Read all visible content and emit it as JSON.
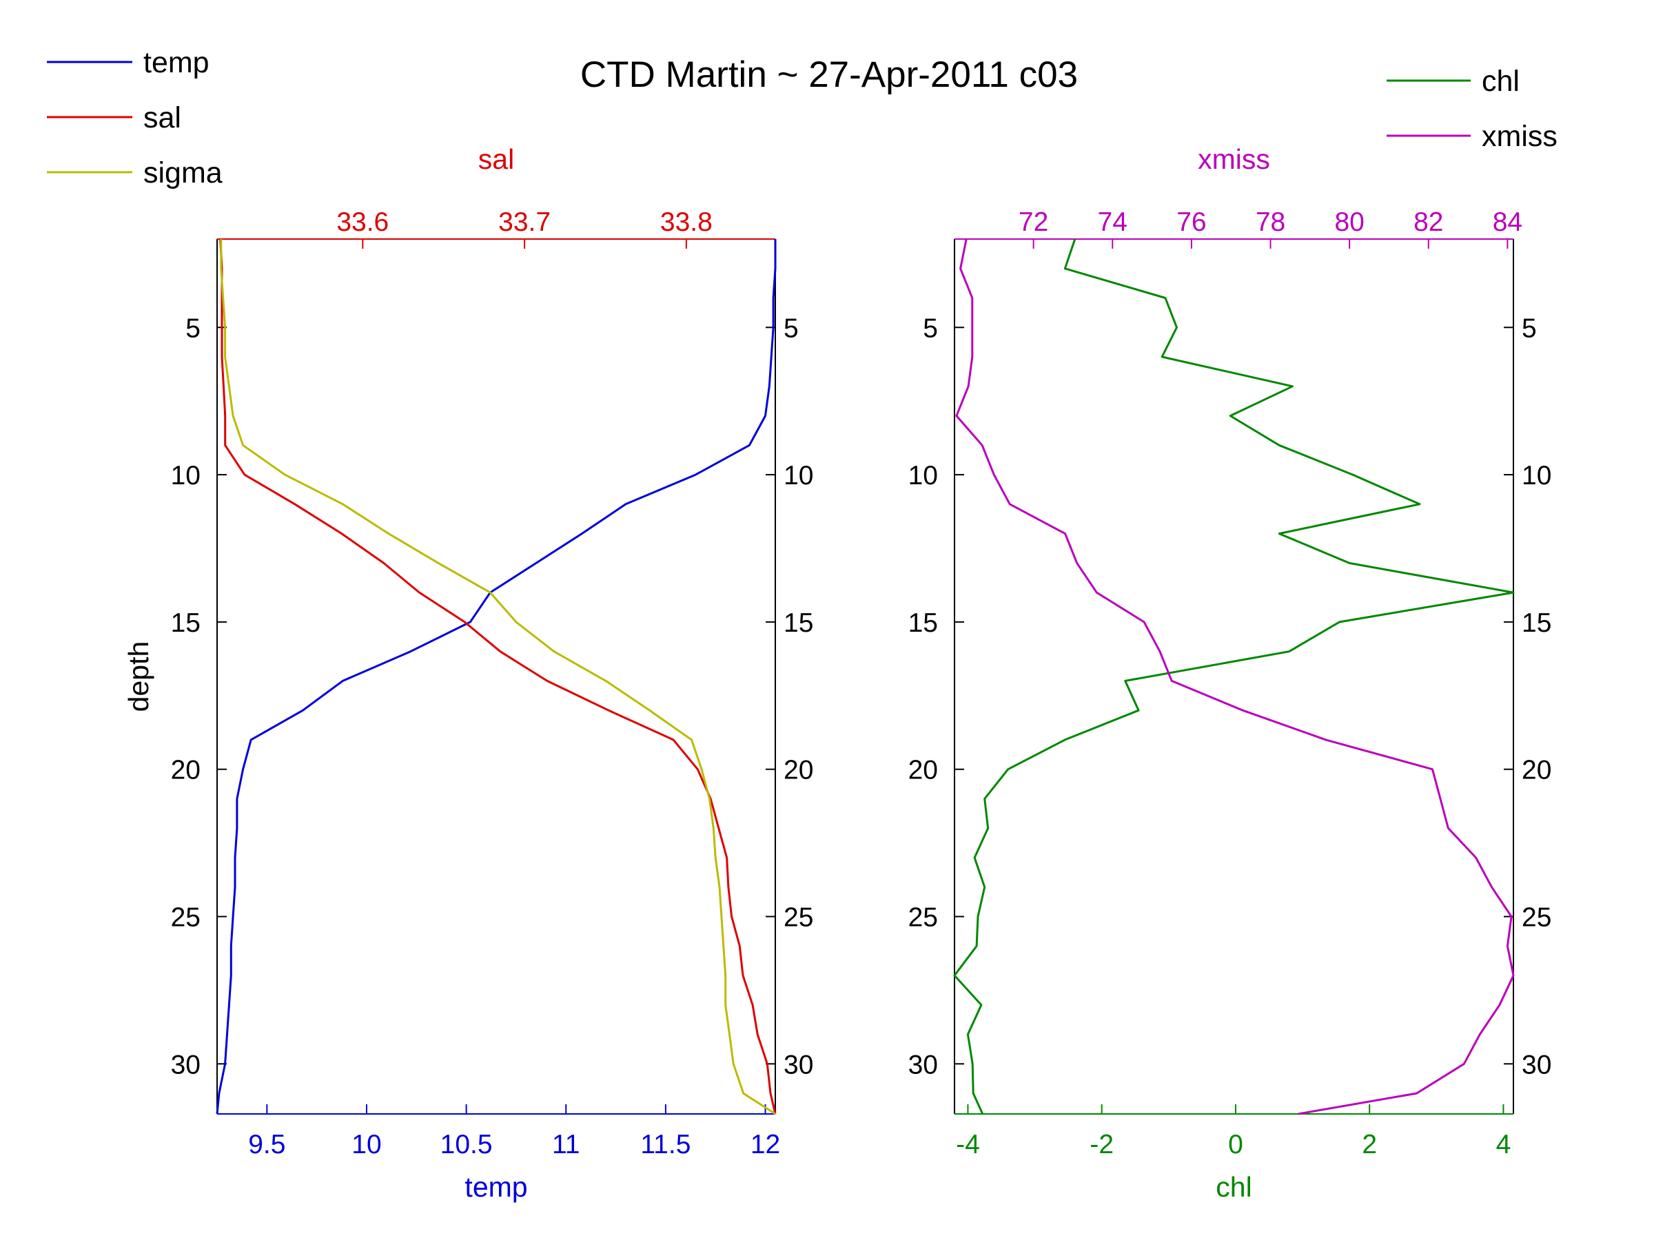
{
  "figure": {
    "title": "CTD Martin ~ 27-Apr-2011 c03"
  },
  "colors": {
    "temp": "#0000dd",
    "sal": "#dd0000",
    "sigma": "#bbbb00",
    "chl": "#008800",
    "xmiss": "#bb00bb",
    "axis": "#000000"
  },
  "legend_left": [
    {
      "label": "temp",
      "color": "#0000dd"
    },
    {
      "label": "sal",
      "color": "#dd0000"
    },
    {
      "label": "sigma",
      "color": "#bbbb00"
    }
  ],
  "legend_right": [
    {
      "label": "chl",
      "color": "#008800"
    },
    {
      "label": "xmiss",
      "color": "#bb00bb"
    }
  ],
  "chart_data": [
    {
      "type": "line",
      "panel": "left",
      "ylabel": "depth",
      "ylim": [
        2,
        31.7
      ],
      "yreversed": true,
      "yticks": [
        5,
        10,
        15,
        20,
        25,
        30
      ],
      "bottom_axis": {
        "label": "temp",
        "lim": [
          9.25,
          12.05
        ],
        "ticks": [
          9.5,
          10,
          10.5,
          11,
          11.5,
          12
        ]
      },
      "top_axis": {
        "label": "sal",
        "lim": [
          33.51,
          33.855
        ],
        "ticks": [
          33.6,
          33.7,
          33.8
        ]
      },
      "depth": [
        2,
        3,
        4,
        5,
        6,
        7,
        8,
        9,
        10,
        11,
        12,
        13,
        14,
        15,
        16,
        17,
        18,
        19,
        20,
        21,
        22,
        23,
        24,
        25,
        26,
        27,
        28,
        29,
        30,
        31,
        31.7
      ],
      "series": [
        {
          "name": "temp",
          "axis": "bottom",
          "values": [
            12.05,
            12.05,
            12.04,
            12.04,
            12.03,
            12.02,
            12.0,
            11.92,
            11.65,
            11.3,
            11.08,
            10.85,
            10.62,
            10.52,
            10.22,
            9.88,
            9.68,
            9.42,
            9.38,
            9.35,
            9.35,
            9.34,
            9.34,
            9.33,
            9.32,
            9.32,
            9.31,
            9.3,
            9.29,
            9.26,
            9.25
          ]
        },
        {
          "name": "sal",
          "axis": "top",
          "values": [
            33.512,
            33.513,
            33.513,
            33.513,
            33.513,
            33.514,
            33.515,
            33.515,
            33.527,
            33.558,
            33.587,
            33.613,
            33.635,
            33.663,
            33.685,
            33.714,
            33.752,
            33.792,
            33.807,
            33.815,
            33.82,
            33.825,
            33.826,
            33.828,
            33.833,
            33.835,
            33.841,
            33.844,
            33.85,
            33.852,
            33.855
          ]
        },
        {
          "name": "sigma",
          "axis": "bottom",
          "values": [
            9.27,
            9.27,
            9.28,
            9.29,
            9.29,
            9.31,
            9.33,
            9.38,
            9.59,
            9.88,
            10.11,
            10.36,
            10.62,
            10.75,
            10.94,
            11.2,
            11.42,
            11.63,
            11.68,
            11.72,
            11.74,
            11.75,
            11.77,
            11.78,
            11.79,
            11.8,
            11.8,
            11.82,
            11.84,
            11.89,
            12.05
          ]
        }
      ]
    },
    {
      "type": "line",
      "panel": "right",
      "ylim": [
        2,
        31.7
      ],
      "yreversed": true,
      "yticks": [
        5,
        10,
        15,
        20,
        25,
        30
      ],
      "bottom_axis": {
        "label": "chl",
        "lim": [
          -4.2,
          4.15
        ],
        "ticks": [
          -4,
          -2,
          0,
          2,
          4
        ]
      },
      "top_axis": {
        "label": "xmiss",
        "lim": [
          70.0,
          84.15
        ],
        "ticks": [
          72,
          74,
          76,
          78,
          80,
          82,
          84
        ]
      },
      "depth": [
        2,
        3,
        4,
        5,
        6,
        7,
        8,
        9,
        10,
        11,
        12,
        13,
        14,
        15,
        16,
        17,
        18,
        19,
        20,
        21,
        22,
        23,
        24,
        25,
        26,
        27,
        28,
        29,
        30,
        31,
        31.7
      ],
      "series": [
        {
          "name": "chl",
          "axis": "bottom",
          "values": [
            -2.4,
            -2.55,
            -1.05,
            -0.88,
            -1.1,
            0.85,
            -0.08,
            0.65,
            1.75,
            2.75,
            0.65,
            1.7,
            4.15,
            1.55,
            0.8,
            -1.65,
            -1.45,
            -2.55,
            -3.4,
            -3.75,
            -3.7,
            -3.9,
            -3.75,
            -3.85,
            -3.87,
            -4.2,
            -3.8,
            -4.0,
            -3.93,
            -3.92,
            -3.78
          ]
        },
        {
          "name": "xmiss",
          "axis": "top",
          "values": [
            70.3,
            70.15,
            70.45,
            70.45,
            70.45,
            70.35,
            70.05,
            70.7,
            71.0,
            71.4,
            72.8,
            73.1,
            73.6,
            74.8,
            75.2,
            75.5,
            77.3,
            79.4,
            82.1,
            82.3,
            82.5,
            83.2,
            83.6,
            84.1,
            84.0,
            84.2,
            83.8,
            83.3,
            82.9,
            81.7,
            78.7
          ]
        }
      ]
    }
  ]
}
